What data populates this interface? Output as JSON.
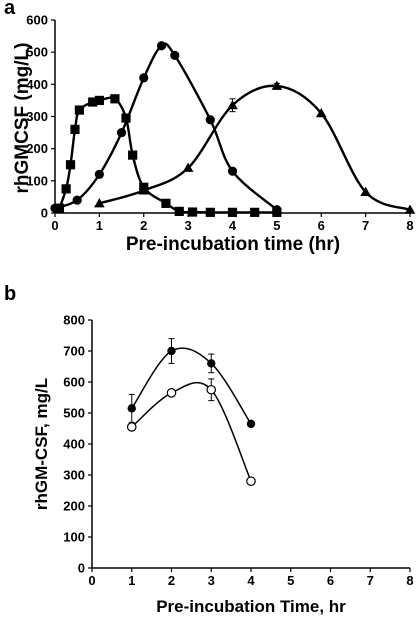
{
  "chart_data": [
    {
      "panel": "a",
      "type": "line",
      "xlabel": "Pre-incubation time (hr)",
      "ylabel": "rhGMCSF (mg/L)",
      "xlim": [
        0,
        8
      ],
      "ylim": [
        0,
        600
      ],
      "xticks": [
        0,
        1,
        2,
        3,
        4,
        5,
        6,
        7,
        8
      ],
      "yticks": [
        0,
        100,
        200,
        300,
        400,
        500,
        600
      ],
      "grid": false,
      "legend": "none",
      "series": [
        {
          "marker": "square",
          "x": [
            0.1,
            0.25,
            0.35,
            0.45,
            0.55,
            0.85,
            1.0,
            1.35,
            1.6,
            1.75,
            2.0,
            2.5,
            2.8,
            3.1,
            3.5,
            4.0,
            4.5,
            5.0
          ],
          "y": [
            15,
            75,
            150,
            260,
            320,
            345,
            350,
            355,
            295,
            180,
            80,
            30,
            5,
            3,
            2,
            2,
            2,
            2
          ]
        },
        {
          "marker": "circle",
          "x": [
            0.0,
            0.5,
            1.0,
            1.5,
            2.0,
            2.4,
            2.7,
            3.5,
            4.0,
            5.0
          ],
          "y": [
            15,
            40,
            120,
            250,
            420,
            520,
            490,
            290,
            130,
            10
          ]
        },
        {
          "marker": "triangle",
          "x": [
            1.0,
            2.0,
            3.0,
            4.0,
            5.0,
            6.0,
            7.0,
            8.0
          ],
          "y": [
            30,
            70,
            140,
            335,
            395,
            310,
            65,
            10
          ],
          "errors": [
            0,
            0,
            0,
            20,
            8,
            0,
            0,
            0
          ]
        }
      ]
    },
    {
      "panel": "b",
      "type": "line",
      "xlabel": "Pre-incubation Time, hr",
      "ylabel": "rhGM-CSF, mg/L",
      "xlim": [
        0,
        8
      ],
      "ylim": [
        0,
        800
      ],
      "xticks": [
        0,
        1,
        2,
        3,
        4,
        5,
        6,
        7,
        8
      ],
      "yticks": [
        0,
        100,
        200,
        300,
        400,
        500,
        600,
        700,
        800
      ],
      "grid": false,
      "legend": "none",
      "series": [
        {
          "marker": "filled-circle",
          "x": [
            1,
            2,
            3,
            4
          ],
          "y": [
            515,
            700,
            660,
            465
          ],
          "errors": [
            45,
            40,
            30,
            0
          ]
        },
        {
          "marker": "open-circle",
          "x": [
            1,
            2,
            3,
            4
          ],
          "y": [
            455,
            565,
            575,
            280
          ],
          "errors": [
            0,
            0,
            35,
            0
          ]
        }
      ]
    }
  ]
}
